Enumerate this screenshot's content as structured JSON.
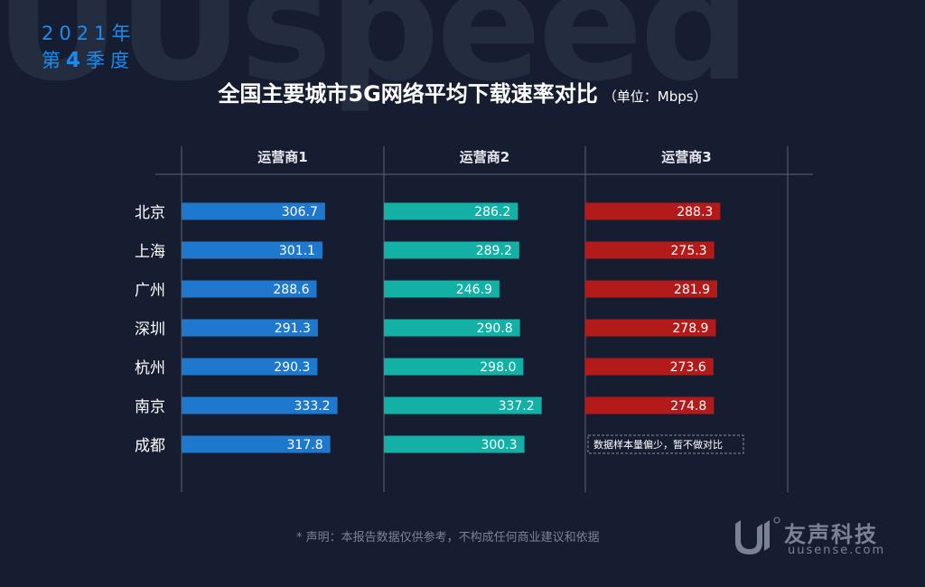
{
  "watermark": "UUspeed",
  "period": {
    "year": "2021年",
    "quarter_prefix": "第",
    "quarter_num": "4",
    "quarter_suffix": "季度"
  },
  "title": "全国主要城市5G网络平均下载速率对比",
  "unit": "（单位：Mbps）",
  "footnote": "* 声明：本报告数据仅供参考，不构成任何商业建议和依据",
  "brand": {
    "name": "友声科技",
    "url": "uusense.com"
  },
  "colors": {
    "background": "#161d31",
    "series": [
      "#1e78cd",
      "#13b0a5",
      "#b31a1a"
    ],
    "grid": "#5c6273"
  },
  "chart_data": {
    "type": "bar",
    "orientation": "horizontal",
    "categories": [
      "北京",
      "上海",
      "广州",
      "深圳",
      "杭州",
      "南京",
      "成都"
    ],
    "series": [
      {
        "name": "运营商1",
        "values": [
          306.7,
          301.1,
          288.6,
          291.3,
          290.3,
          333.2,
          317.8
        ]
      },
      {
        "name": "运营商2",
        "values": [
          286.2,
          289.2,
          246.9,
          290.8,
          298.0,
          337.2,
          300.3
        ]
      },
      {
        "name": "运营商3",
        "values": [
          288.3,
          275.3,
          281.9,
          278.9,
          273.6,
          274.8,
          null
        ]
      }
    ],
    "annotations": [
      {
        "series": "运营商3",
        "category": "成都",
        "text": "数据样本量偏少，暂不做对比"
      }
    ],
    "title": "全国主要城市5G网络平均下载速率对比",
    "xlabel": "",
    "ylabel": ""
  }
}
